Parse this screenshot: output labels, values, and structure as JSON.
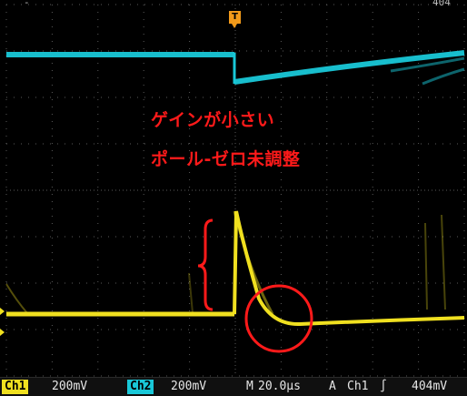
{
  "trigger_marker": {
    "label": "T",
    "color": "#f29a1a"
  },
  "top_fragment_left": "-",
  "top_fragment_right": "404",
  "annotation": {
    "line1": "ゲインが小さい",
    "line2": "ポール-ゼロ未調整",
    "color": "#ff1a1a",
    "shapes": [
      "brace",
      "circle"
    ]
  },
  "colors": {
    "ch1": "#f0e020",
    "ch2": "#19c8d8",
    "grid": "#5a5a5a",
    "annotation": "#ff1a1a"
  },
  "statusbar": {
    "ch1_label": "Ch1",
    "ch1_scale": "200mV",
    "ch2_label": "Ch2",
    "ch2_scale": "200mV",
    "timebase_label": "M",
    "timebase_value": "20.0µs",
    "acq_label": "A",
    "trigger_source": "Ch1",
    "trigger_slope_icon": "rising-edge-icon",
    "trigger_slope_glyph": "∫",
    "trigger_level": "404mV"
  }
}
